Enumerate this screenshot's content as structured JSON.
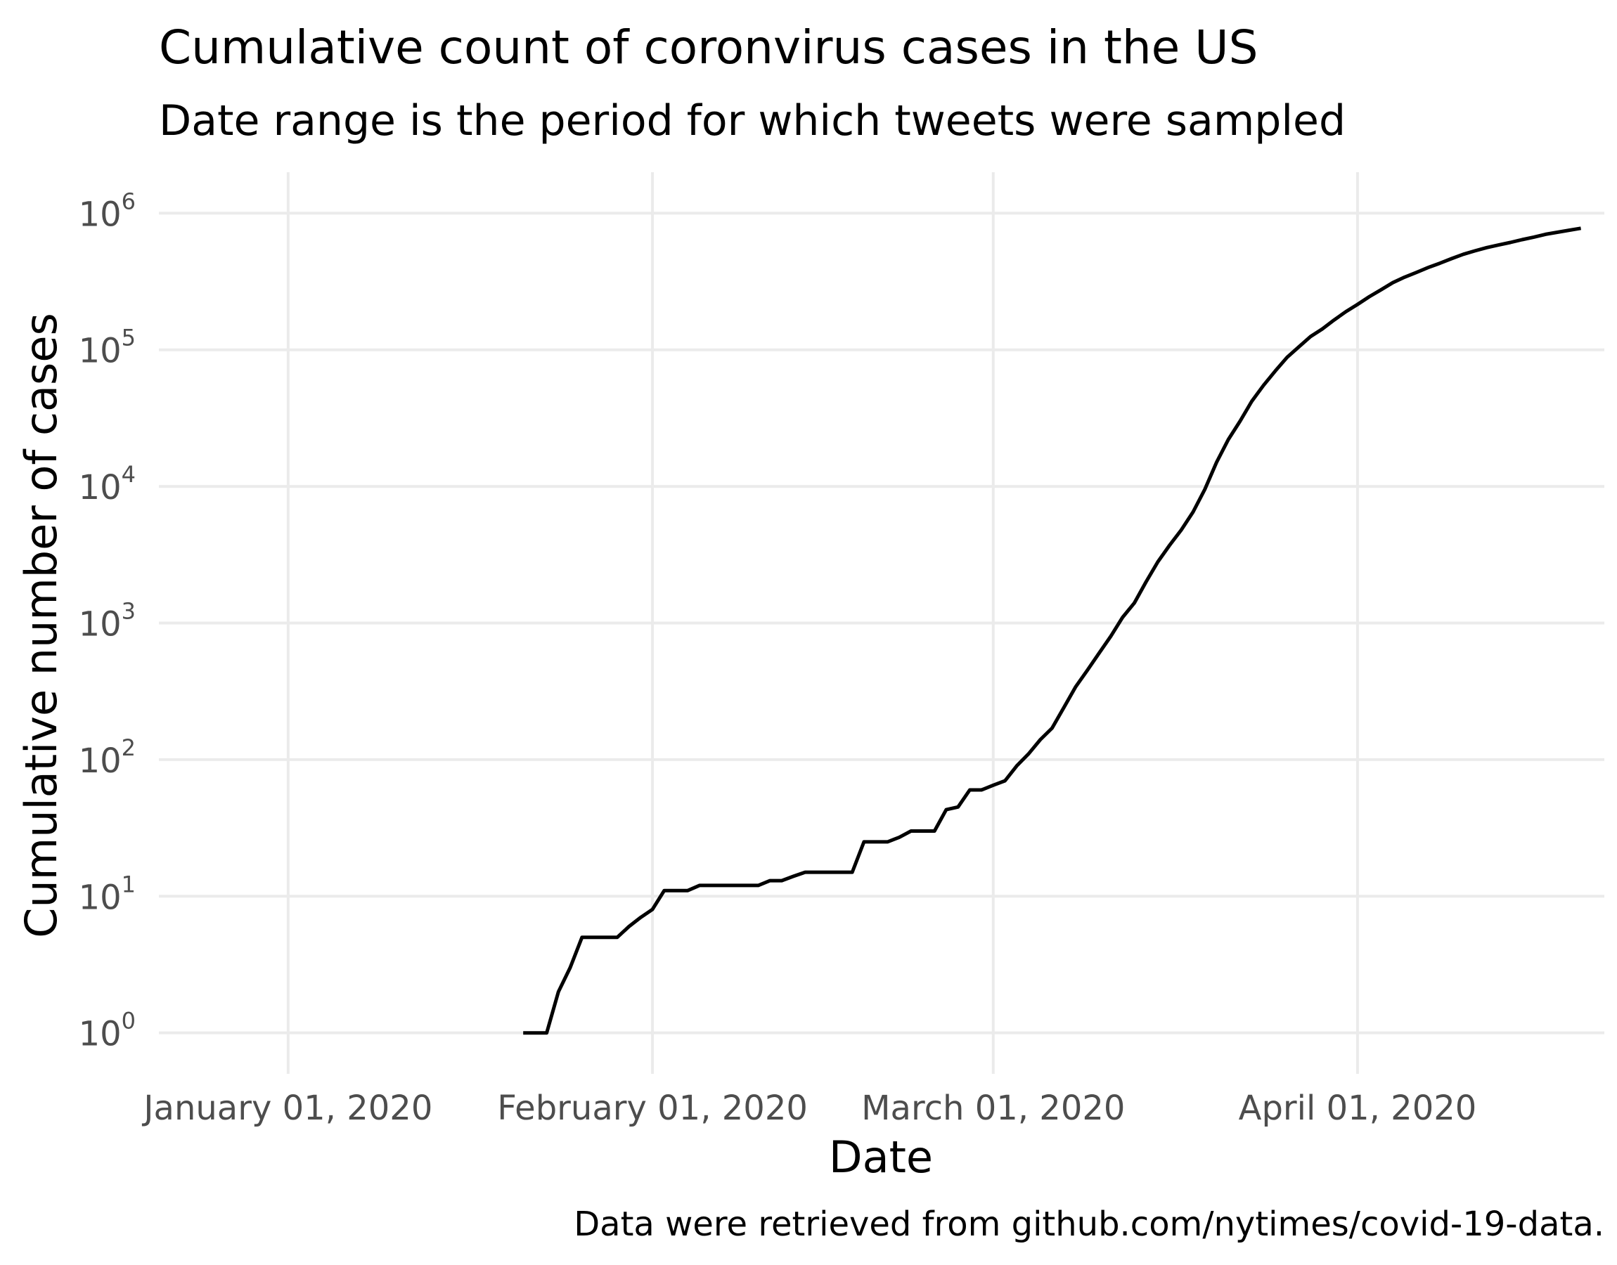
{
  "chart_data": {
    "type": "line",
    "title": "Cumulative count of coronvirus cases in the US",
    "subtitle": "Date range is the period for which tweets were sampled",
    "caption": "Data were retrieved from github.com/nytimes/covid-19-data.",
    "xlabel": "Date",
    "ylabel": "Cumulative number of cases",
    "y_scale": "log10",
    "ylim": [
      1,
      1000000
    ],
    "xlim": [
      "2019-12-21",
      "2020-04-22"
    ],
    "grid": true,
    "legend": "none",
    "line_color": "#000000",
    "x_ticks": [
      {
        "date": "2020-01-01",
        "label": "January 01, 2020"
      },
      {
        "date": "2020-02-01",
        "label": "February 01, 2020"
      },
      {
        "date": "2020-03-01",
        "label": "March 01, 2020"
      },
      {
        "date": "2020-04-01",
        "label": "April 01, 2020"
      }
    ],
    "y_ticks": [
      {
        "value": 1,
        "base": "10",
        "exp": "0"
      },
      {
        "value": 10,
        "base": "10",
        "exp": "1"
      },
      {
        "value": 100,
        "base": "10",
        "exp": "2"
      },
      {
        "value": 1000,
        "base": "10",
        "exp": "3"
      },
      {
        "value": 10000,
        "base": "10",
        "exp": "4"
      },
      {
        "value": 100000,
        "base": "10",
        "exp": "5"
      },
      {
        "value": 1000000,
        "base": "10",
        "exp": "6"
      }
    ],
    "series": [
      {
        "x": [
          "2020-01-21",
          "2020-01-22",
          "2020-01-23",
          "2020-01-24",
          "2020-01-25",
          "2020-01-26",
          "2020-01-27",
          "2020-01-28",
          "2020-01-29",
          "2020-01-30",
          "2020-01-31",
          "2020-02-01",
          "2020-02-02",
          "2020-02-03",
          "2020-02-04",
          "2020-02-05",
          "2020-02-06",
          "2020-02-07",
          "2020-02-08",
          "2020-02-09",
          "2020-02-10",
          "2020-02-11",
          "2020-02-12",
          "2020-02-13",
          "2020-02-14",
          "2020-02-15",
          "2020-02-16",
          "2020-02-17",
          "2020-02-18",
          "2020-02-19",
          "2020-02-20",
          "2020-02-21",
          "2020-02-22",
          "2020-02-23",
          "2020-02-24",
          "2020-02-25",
          "2020-02-26",
          "2020-02-27",
          "2020-02-28",
          "2020-02-29",
          "2020-03-01",
          "2020-03-02",
          "2020-03-03",
          "2020-03-04",
          "2020-03-05",
          "2020-03-06",
          "2020-03-07",
          "2020-03-08",
          "2020-03-09",
          "2020-03-10",
          "2020-03-11",
          "2020-03-12",
          "2020-03-13",
          "2020-03-14",
          "2020-03-15",
          "2020-03-16",
          "2020-03-17",
          "2020-03-18",
          "2020-03-19",
          "2020-03-20",
          "2020-03-21",
          "2020-03-22",
          "2020-03-23",
          "2020-03-24",
          "2020-03-25",
          "2020-03-26",
          "2020-03-27",
          "2020-03-28",
          "2020-03-29",
          "2020-03-30",
          "2020-03-31",
          "2020-04-01",
          "2020-04-02",
          "2020-04-03",
          "2020-04-04",
          "2020-04-05",
          "2020-04-06",
          "2020-04-07",
          "2020-04-08",
          "2020-04-09",
          "2020-04-10",
          "2020-04-11",
          "2020-04-12",
          "2020-04-13",
          "2020-04-14",
          "2020-04-15",
          "2020-04-16",
          "2020-04-17",
          "2020-04-18",
          "2020-04-19",
          "2020-04-20"
        ],
        "y": [
          1,
          1,
          1,
          2,
          3,
          5,
          5,
          5,
          5,
          6,
          7,
          8,
          11,
          11,
          11,
          12,
          12,
          12,
          12,
          12,
          12,
          13,
          13,
          14,
          15,
          15,
          15,
          15,
          15,
          25,
          25,
          25,
          27,
          30,
          30,
          30,
          43,
          45,
          60,
          60,
          65,
          70,
          90,
          110,
          140,
          170,
          240,
          340,
          450,
          600,
          800,
          1100,
          1400,
          2000,
          2800,
          3700,
          4800,
          6500,
          9500,
          15000,
          22000,
          30000,
          42000,
          55000,
          70000,
          88000,
          105000,
          125000,
          142000,
          165000,
          190000,
          215000,
          245000,
          275000,
          310000,
          340000,
          368000,
          400000,
          430000,
          465000,
          500000,
          530000,
          560000,
          585000,
          610000,
          640000,
          668000,
          700000,
          725000,
          750000,
          775000
        ]
      }
    ]
  }
}
